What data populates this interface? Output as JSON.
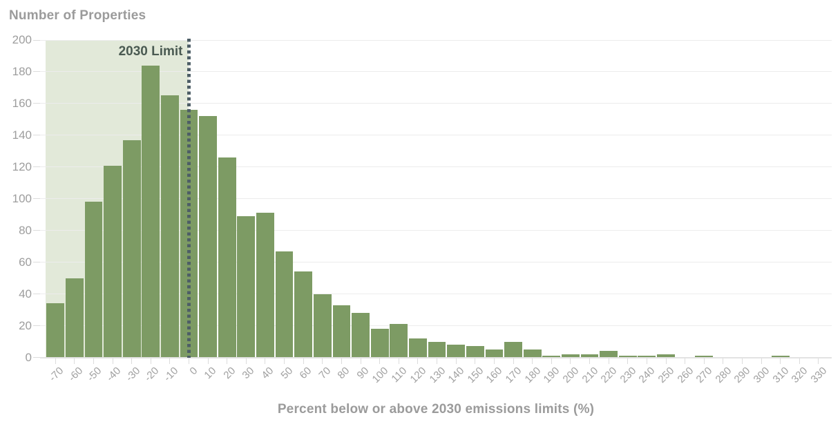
{
  "chart_data": {
    "type": "bar",
    "title": "Number of Properties",
    "xlabel": "Percent below or above 2030 emissions limits (%)",
    "ylabel": "Number of Properties",
    "categories": [
      -70,
      -60,
      -50,
      -40,
      -30,
      -20,
      -10,
      0,
      10,
      20,
      30,
      40,
      50,
      60,
      70,
      80,
      90,
      100,
      110,
      120,
      130,
      140,
      150,
      160,
      170,
      180,
      190,
      200,
      210,
      220,
      230,
      240,
      250,
      260,
      270,
      280,
      290,
      300,
      310,
      320,
      330
    ],
    "values": [
      34,
      50,
      98,
      121,
      137,
      184,
      165,
      156,
      152,
      126,
      89,
      91,
      67,
      54,
      40,
      33,
      28,
      18,
      21,
      12,
      10,
      8,
      7,
      5,
      10,
      5,
      1,
      2,
      2,
      4,
      1,
      1,
      2,
      0,
      1,
      0,
      0,
      0,
      1,
      0,
      0
    ],
    "ylim": [
      0,
      200
    ],
    "yticks": [
      0,
      20,
      40,
      60,
      80,
      100,
      120,
      140,
      160,
      180,
      200
    ],
    "grid": "horizontal",
    "legend": "none",
    "annotation": {
      "label": "2030 Limit",
      "x": 0,
      "style": "dotted-vertical-line"
    },
    "shaded_region": {
      "from": -75,
      "to": 0
    },
    "colors": {
      "bar": "#7d9b64",
      "shade": "#e2e9d9",
      "dotted_line": "#4d5e66",
      "annotation_text": "#4a5a52",
      "axis_text": "#9d9d9d",
      "tick_text": "#a0a0a0",
      "gridline": "#ececec",
      "axis_line": "#e2e2e2",
      "tick_mark": "#dcdcdc"
    }
  }
}
